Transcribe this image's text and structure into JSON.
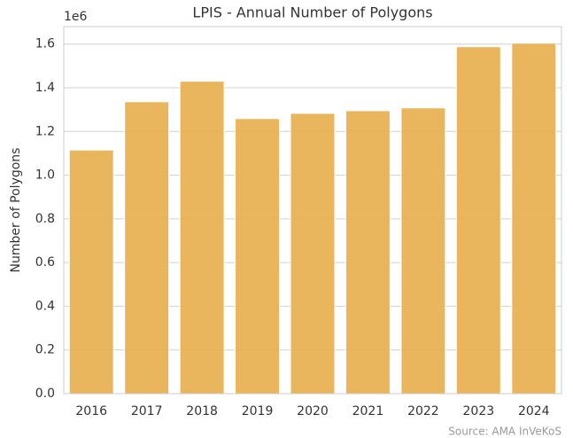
{
  "chart_data": {
    "type": "bar",
    "title": "LPIS - Annual Number of Polygons",
    "y_label": "Number of Polygons",
    "y_offset_label": "1e6",
    "source": "Source: AMA InVeKoS",
    "categories": [
      "2016",
      "2017",
      "2018",
      "2019",
      "2020",
      "2021",
      "2022",
      "2023",
      "2024"
    ],
    "values": [
      1.115,
      1.336,
      1.43,
      1.259,
      1.283,
      1.295,
      1.308,
      1.588,
      1.604
    ],
    "color": "#e8b04f",
    "ylim": [
      0,
      1.68
    ],
    "yticks": [
      {
        "value": 0,
        "label": "0.0"
      },
      0.2,
      0.4,
      0.6,
      0.8,
      {
        "value": 1,
        "label": "1.0"
      },
      1.2,
      1.4,
      1.6
    ],
    "grid": true
  }
}
